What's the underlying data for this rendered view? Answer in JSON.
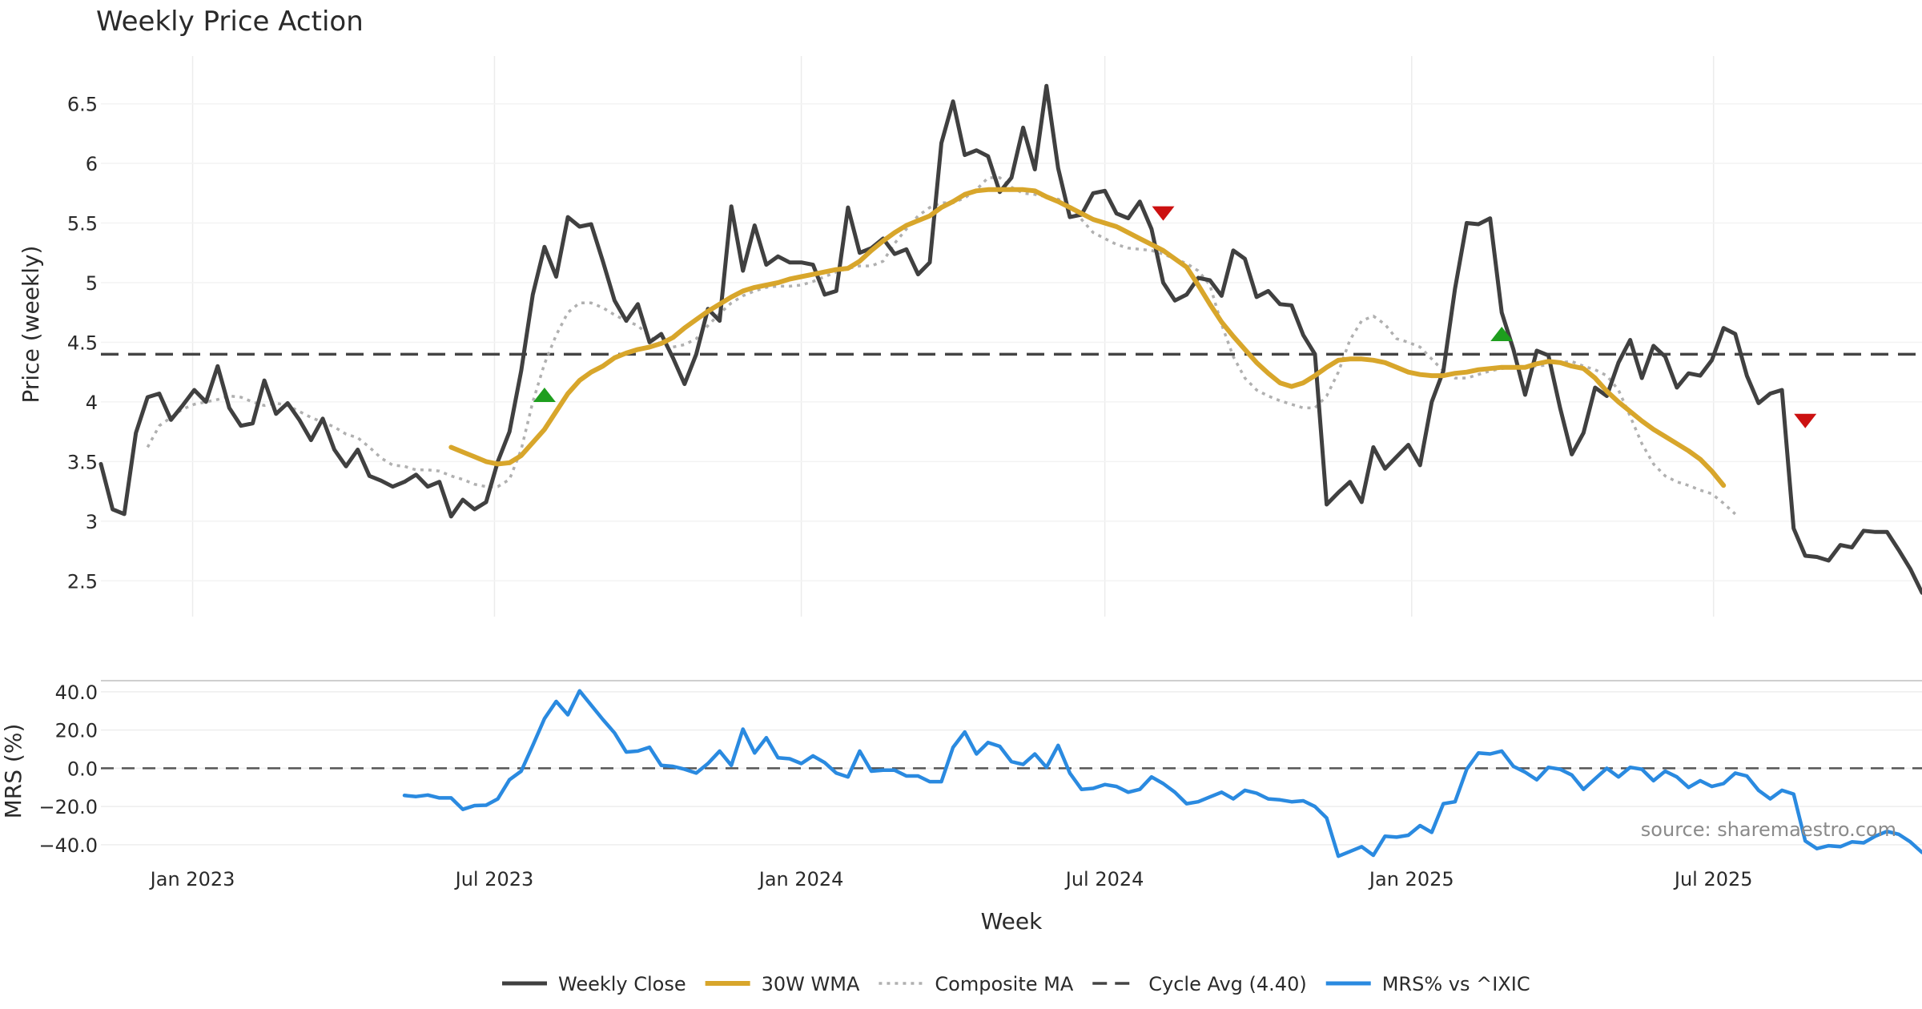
{
  "chart_data": [
    {
      "type": "line",
      "title": "Weekly Price Action",
      "ylabel": "Price (weekly)",
      "ylim": [
        2.2,
        6.9
      ],
      "yticks": [
        "2.5",
        "3",
        "3.5",
        "4",
        "4.5",
        "5",
        "5.5",
        "6",
        "6.5"
      ],
      "grid": true,
      "x_start": "2022-11-07",
      "x_step_days": 7,
      "reference_line": {
        "name": "Cycle Avg (4.40)",
        "value": 4.4,
        "style": "dashed"
      },
      "series": [
        {
          "name": "Weekly Close",
          "color": "#404040",
          "style": "solid",
          "values": [
            3.48,
            3.1,
            3.06,
            3.74,
            4.04,
            4.07,
            3.85,
            3.97,
            4.1,
            4.0,
            4.3,
            3.95,
            3.8,
            3.82,
            4.18,
            3.9,
            3.99,
            3.85,
            3.68,
            3.86,
            3.6,
            3.46,
            3.6,
            3.38,
            3.34,
            3.29,
            3.33,
            3.39,
            3.29,
            3.33,
            3.04,
            3.18,
            3.1,
            3.16,
            3.5,
            3.75,
            4.26,
            4.9,
            5.3,
            5.05,
            5.55,
            5.47,
            5.49,
            5.18,
            4.85,
            4.68,
            4.82,
            4.5,
            4.57,
            4.37,
            4.15,
            4.4,
            4.78,
            4.68,
            5.64,
            5.1,
            5.48,
            5.15,
            5.22,
            5.17,
            5.17,
            5.15,
            4.9,
            4.93,
            5.63,
            5.25,
            5.29,
            5.37,
            5.24,
            5.28,
            5.07,
            5.17,
            6.17,
            6.52,
            6.07,
            6.11,
            6.06,
            5.76,
            5.88,
            6.3,
            5.95,
            6.65,
            5.96,
            5.55,
            5.57,
            5.75,
            5.77,
            5.58,
            5.54,
            5.68,
            5.45,
            5.0,
            4.85,
            4.9,
            5.04,
            5.02,
            4.89,
            5.27,
            5.2,
            4.88,
            4.93,
            4.82,
            4.81,
            4.56,
            4.4,
            3.14,
            3.24,
            3.33,
            3.16,
            3.62,
            3.44,
            3.54,
            3.64,
            3.47,
            4.0,
            4.26,
            4.95,
            5.5,
            5.49,
            5.54,
            4.75,
            4.44,
            4.06,
            4.43,
            4.39,
            3.95,
            3.56,
            3.74,
            4.12,
            4.05,
            4.33,
            4.52,
            4.2,
            4.47,
            4.38,
            4.12,
            4.24,
            4.22,
            4.35,
            4.62,
            4.57,
            4.22,
            3.99,
            4.07,
            4.1,
            2.94,
            2.71,
            2.7,
            2.67,
            2.8,
            2.78,
            2.92,
            2.91,
            2.91,
            2.76,
            2.6,
            2.4
          ]
        },
        {
          "name": "30W WMA",
          "color": "#d8a62b",
          "style": "solid",
          "x_offset": 30,
          "values": [
            3.62,
            3.58,
            3.54,
            3.5,
            3.48,
            3.49,
            3.55,
            3.66,
            3.77,
            3.92,
            4.07,
            4.18,
            4.25,
            4.3,
            4.37,
            4.41,
            4.44,
            4.46,
            4.49,
            4.54,
            4.62,
            4.69,
            4.76,
            4.82,
            4.88,
            4.93,
            4.96,
            4.98,
            5.0,
            5.03,
            5.05,
            5.07,
            5.09,
            5.11,
            5.12,
            5.18,
            5.27,
            5.35,
            5.42,
            5.48,
            5.52,
            5.56,
            5.63,
            5.68,
            5.74,
            5.77,
            5.78,
            5.78,
            5.78,
            5.78,
            5.77,
            5.72,
            5.68,
            5.63,
            5.58,
            5.53,
            5.5,
            5.47,
            5.42,
            5.37,
            5.32,
            5.27,
            5.2,
            5.13,
            4.98,
            4.82,
            4.67,
            4.55,
            4.44,
            4.33,
            4.24,
            4.16,
            4.13,
            4.16,
            4.22,
            4.29,
            4.35,
            4.36,
            4.36,
            4.35,
            4.33,
            4.29,
            4.25,
            4.23,
            4.22,
            4.22,
            4.24,
            4.25,
            4.27,
            4.28,
            4.29,
            4.29,
            4.29,
            4.32,
            4.34,
            4.33,
            4.3,
            4.28,
            4.2,
            4.09,
            4.0,
            3.92,
            3.84,
            3.77,
            3.71,
            3.65,
            3.59,
            3.52,
            3.42,
            3.3
          ]
        },
        {
          "name": "Composite MA",
          "color": "#b0b0b0",
          "style": "dotted",
          "x_offset": 4,
          "values": [
            3.62,
            3.8,
            3.87,
            3.94,
            3.98,
            4.0,
            4.02,
            4.05,
            4.04,
            4.0,
            3.97,
            3.99,
            3.97,
            3.92,
            3.87,
            3.83,
            3.79,
            3.73,
            3.7,
            3.62,
            3.53,
            3.47,
            3.46,
            3.43,
            3.43,
            3.42,
            3.38,
            3.35,
            3.31,
            3.29,
            3.29,
            3.35,
            3.6,
            4.0,
            4.32,
            4.56,
            4.75,
            4.83,
            4.83,
            4.79,
            4.73,
            4.68,
            4.64,
            4.55,
            4.48,
            4.46,
            4.48,
            4.53,
            4.64,
            4.74,
            4.83,
            4.89,
            4.93,
            4.96,
            4.97,
            4.97,
            4.98,
            5.01,
            5.05,
            5.09,
            5.12,
            5.14,
            5.14,
            5.18,
            5.33,
            5.45,
            5.56,
            5.63,
            5.67,
            5.67,
            5.71,
            5.78,
            5.88,
            5.88,
            5.8,
            5.75,
            5.74,
            5.72,
            5.7,
            5.65,
            5.53,
            5.42,
            5.37,
            5.32,
            5.29,
            5.28,
            5.27,
            5.24,
            5.2,
            5.16,
            5.1,
            4.98,
            4.65,
            4.38,
            4.2,
            4.1,
            4.05,
            4.01,
            3.98,
            3.95,
            3.95,
            4.05,
            4.25,
            4.52,
            4.68,
            4.72,
            4.65,
            4.53,
            4.5,
            4.46,
            4.36,
            4.26,
            4.2,
            4.2,
            4.23,
            4.26,
            4.28,
            4.29,
            4.3,
            4.3,
            4.31,
            4.33,
            4.34,
            4.3,
            4.27,
            4.22,
            4.1,
            3.88,
            3.65,
            3.48,
            3.38,
            3.33,
            3.3,
            3.26,
            3.23,
            3.15,
            3.06
          ]
        }
      ],
      "markers": [
        {
          "type": "buy",
          "shape": "triangle-up",
          "color": "#1e9e1e",
          "x_index": 38,
          "value": 4.06
        },
        {
          "type": "sell",
          "shape": "triangle-down",
          "color": "#cc1111",
          "x_index": 91,
          "value": 5.58
        },
        {
          "type": "buy",
          "shape": "triangle-up",
          "color": "#1e9e1e",
          "x_index": 120,
          "value": 4.57
        },
        {
          "type": "sell",
          "shape": "triangle-down",
          "color": "#cc1111",
          "x_index": 146,
          "value": 3.84
        }
      ]
    },
    {
      "type": "line",
      "ylabel": "MRS (%)",
      "ylim": [
        -48,
        45
      ],
      "yticks": [
        "40.0",
        "20.0",
        "0.0",
        "−20.0",
        "−40.0"
      ],
      "xlabel": "Week",
      "xticks": [
        "Jan 2023",
        "Jul 2023",
        "Jan 2024",
        "Jul 2024",
        "Jan 2025",
        "Jul 2025"
      ],
      "xtick_dates": [
        "2023-01-01",
        "2023-07-01",
        "2024-01-01",
        "2024-07-01",
        "2025-01-01",
        "2025-07-01"
      ],
      "reference_line": {
        "value": 0,
        "style": "dashed"
      },
      "series": [
        {
          "name": "MRS% vs ^IXIC",
          "color": "#2a8ae0",
          "style": "solid",
          "x_offset": 26,
          "values": [
            -14.2,
            -14.8,
            -14.0,
            -15.5,
            -15.5,
            -21.5,
            -19.5,
            -19.3,
            -16.0,
            -6.0,
            -1.5,
            12.0,
            26.0,
            35.0,
            28.0,
            40.5,
            33.0,
            25.5,
            18.5,
            8.5,
            9.0,
            11.0,
            1.5,
            1.0,
            -0.5,
            -2.5,
            2.5,
            9.0,
            1.5,
            20.5,
            8.0,
            16.0,
            5.5,
            5.0,
            2.5,
            6.5,
            3.0,
            -2.5,
            -4.5,
            9.0,
            -1.5,
            -1.0,
            -1.0,
            -4.0,
            -4.0,
            -7.0,
            -7.0,
            11.0,
            19.0,
            7.5,
            13.5,
            11.5,
            3.5,
            2.0,
            7.5,
            0.5,
            12.0,
            -2.5,
            -11.0,
            -10.5,
            -8.5,
            -9.5,
            -12.5,
            -11.0,
            -4.5,
            -8.0,
            -12.5,
            -18.5,
            -17.5,
            -15.0,
            -12.5,
            -16.0,
            -11.5,
            -13.0,
            -16.0,
            -16.5,
            -17.5,
            -17.0,
            -20.0,
            -26.0,
            -46.0,
            -43.5,
            -41.0,
            -45.5,
            -35.5,
            -36.0,
            -35.0,
            -30.0,
            -33.5,
            -18.5,
            -17.5,
            -0.5,
            8.0,
            7.5,
            9.0,
            1.0,
            -2.0,
            -6.0,
            0.5,
            -0.5,
            -3.5,
            -11.0,
            -5.5,
            0.0,
            -4.5,
            0.5,
            -0.5,
            -6.5,
            -1.5,
            -4.5,
            -10.0,
            -6.5,
            -9.5,
            -8.0,
            -2.5,
            -4.0,
            -11.5,
            -16.0,
            -11.5,
            -13.5,
            -38.0,
            -42.0,
            -40.5,
            -41.0,
            -38.5,
            -39.0,
            -35.5,
            -33.0,
            -34.5,
            -38.5,
            -44.0
          ]
        }
      ]
    }
  ],
  "legend": {
    "placement": "bottom",
    "entries": [
      "Weekly Close",
      "30W WMA",
      "Composite MA",
      "Cycle Avg (4.40)",
      "MRS% vs ^IXIC"
    ]
  },
  "source_text": "source: sharemaestro.com"
}
